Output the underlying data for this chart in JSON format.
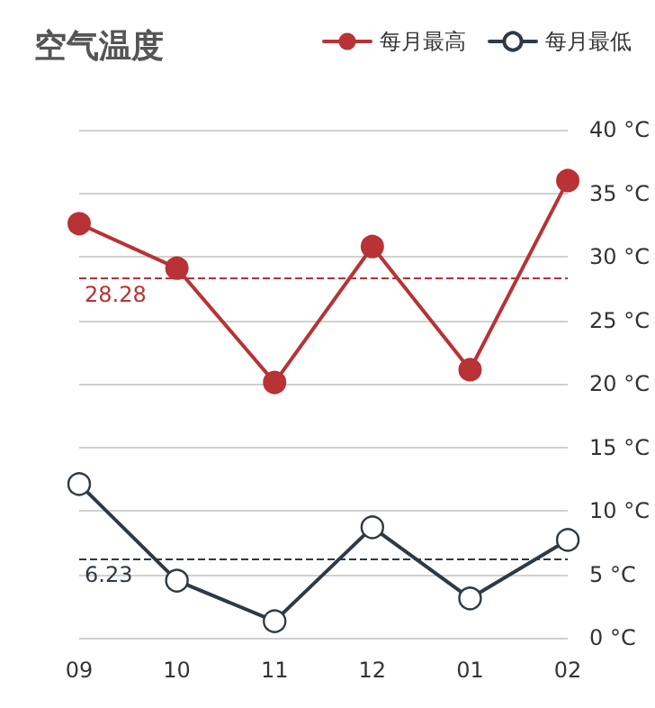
{
  "chart_data": {
    "type": "line",
    "title": "空气温度",
    "categories": [
      "09",
      "10",
      "11",
      "12",
      "01",
      "02"
    ],
    "series": [
      {
        "name": "每月最高",
        "color": "#b83236",
        "values": [
          32.6,
          29.1,
          20.1,
          30.8,
          21.1,
          36.0
        ]
      },
      {
        "name": "每月最低",
        "color": "#2e3a44",
        "values": [
          12.1,
          4.5,
          1.3,
          8.7,
          3.1,
          7.7
        ]
      }
    ],
    "ylim": [
      0,
      40
    ],
    "yticks": [
      {
        "value": 0,
        "label": "0 °C"
      },
      {
        "value": 5,
        "label": "5 °C"
      },
      {
        "value": 10,
        "label": "10 °C"
      },
      {
        "value": 15,
        "label": "15 °C"
      },
      {
        "value": 20,
        "label": "20 °C"
      },
      {
        "value": 25,
        "label": "25 °C"
      },
      {
        "value": 30,
        "label": "30 °C"
      },
      {
        "value": 35,
        "label": "35 °C"
      },
      {
        "value": 40,
        "label": "40 °C"
      }
    ],
    "ref_lines": [
      {
        "axis": "y",
        "value": 28.28,
        "label": "28.28",
        "color": "#b83236",
        "line_style": "dashed"
      },
      {
        "axis": "y",
        "value": 6.23,
        "label": "6.23",
        "color": "#2e3a44",
        "line_style": "dashed"
      }
    ],
    "grid": "y",
    "legend": "top right",
    "marker": "circle",
    "line_style": "solid"
  }
}
